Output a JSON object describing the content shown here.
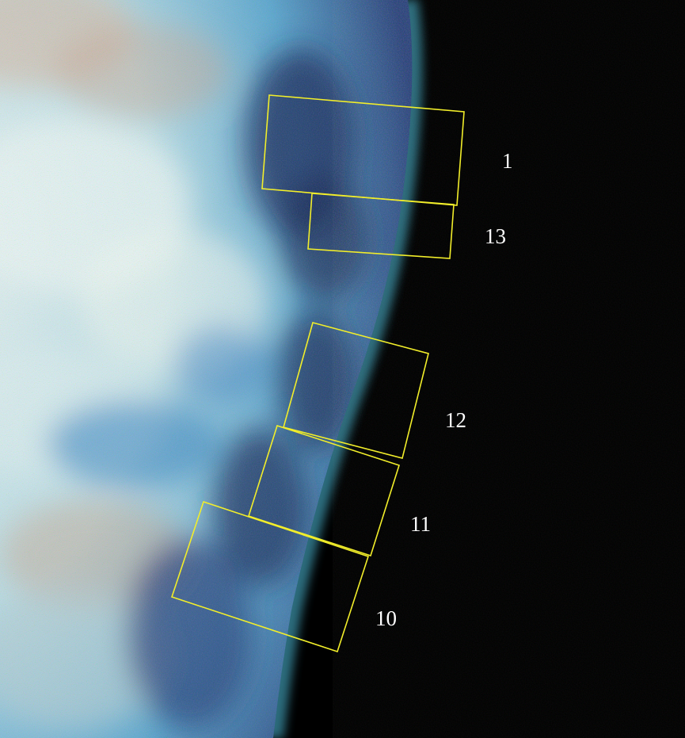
{
  "image": {
    "subject": "planet-limb",
    "colors": {
      "space": "#000000",
      "limb_glow": "#56c9e6",
      "surface_light": "#cfe9ee",
      "surface_warm": "#c7a48e",
      "surface_blue": "#3f86c4",
      "box_outline": "#f2ee2a",
      "label_text": "#ffffff"
    }
  },
  "regions": [
    {
      "id": "1",
      "label": "1"
    },
    {
      "id": "13",
      "label": "13"
    },
    {
      "id": "12",
      "label": "12"
    },
    {
      "id": "11",
      "label": "11"
    },
    {
      "id": "10",
      "label": "10"
    }
  ]
}
